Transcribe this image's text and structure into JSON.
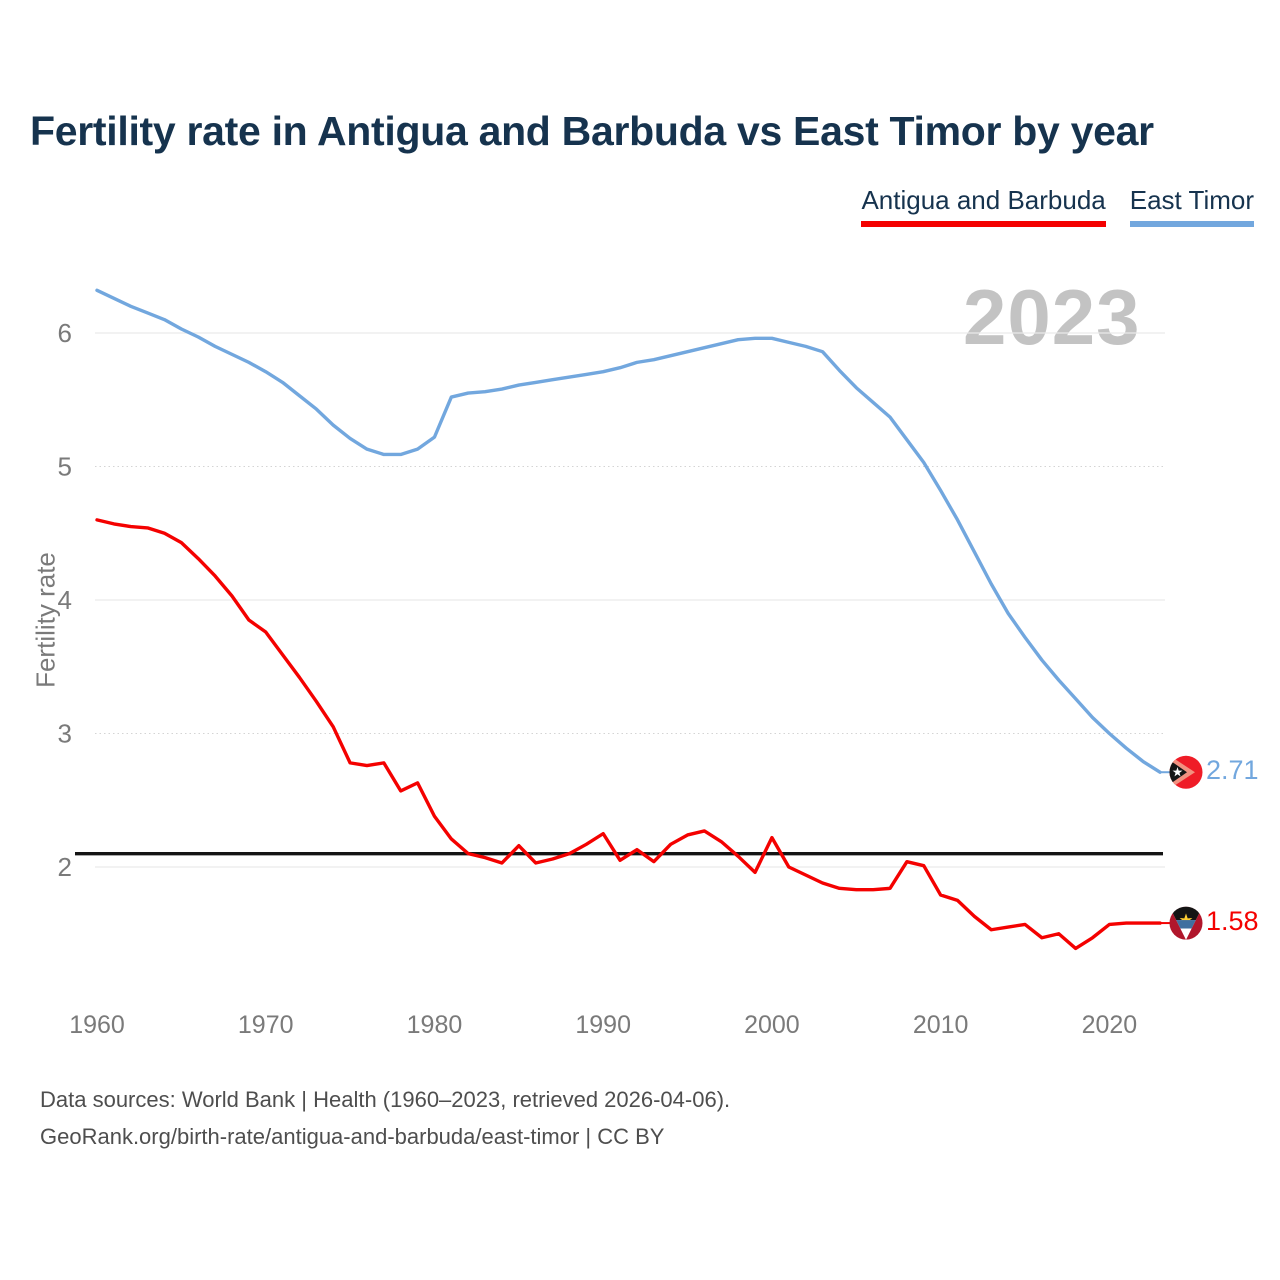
{
  "header": {
    "title": "Fertility rate in Antigua and Barbuda vs East Timor by year"
  },
  "legend": [
    {
      "label": "Antigua and Barbuda",
      "color": "#f40100"
    },
    {
      "label": "East Timor",
      "color": "#72a7de"
    }
  ],
  "watermark": "2023",
  "y_axis": {
    "label": "Fertility rate",
    "ticks": [
      6,
      5,
      4,
      3,
      2
    ]
  },
  "x_axis": {
    "ticks": [
      1960,
      1970,
      1980,
      1990,
      2000,
      2010,
      2020
    ]
  },
  "footer": {
    "line1": "Data sources: World Bank | Health (1960–2023, retrieved 2026-04-06).",
    "line2": "GeoRank.org/birth-rate/antigua-and-barbuda/east-timor | CC BY"
  },
  "chart_data": {
    "type": "line",
    "title": "Fertility rate in Antigua and Barbuda vs East Timor by year",
    "xlabel": "",
    "ylabel": "Fertility rate",
    "x_range": [
      1960,
      2023
    ],
    "ylim": [
      1.2,
      6.5
    ],
    "grid": "horizontal",
    "legend_position": "top-right",
    "reference_line": {
      "value": 2.1,
      "color": "#141414",
      "meaning": "replacement-level fertility"
    },
    "x": [
      1960,
      1961,
      1962,
      1963,
      1964,
      1965,
      1966,
      1967,
      1968,
      1969,
      1970,
      1971,
      1972,
      1973,
      1974,
      1975,
      1976,
      1977,
      1978,
      1979,
      1980,
      1981,
      1982,
      1983,
      1984,
      1985,
      1986,
      1987,
      1988,
      1989,
      1990,
      1991,
      1992,
      1993,
      1994,
      1995,
      1996,
      1997,
      1998,
      1999,
      2000,
      2001,
      2002,
      2003,
      2004,
      2005,
      2006,
      2007,
      2008,
      2009,
      2010,
      2011,
      2012,
      2013,
      2014,
      2015,
      2016,
      2017,
      2018,
      2019,
      2020,
      2021,
      2022,
      2023
    ],
    "series": [
      {
        "name": "Antigua and Barbuda",
        "color": "#f40100",
        "end_label": "1.58",
        "values": [
          4.6,
          4.57,
          4.55,
          4.54,
          4.5,
          4.43,
          4.31,
          4.18,
          4.03,
          3.85,
          3.76,
          3.59,
          3.42,
          3.24,
          3.05,
          2.78,
          2.76,
          2.78,
          2.57,
          2.63,
          2.38,
          2.21,
          2.1,
          2.07,
          2.03,
          2.16,
          2.03,
          2.06,
          2.1,
          2.17,
          2.25,
          2.05,
          2.13,
          2.04,
          2.17,
          2.24,
          2.27,
          2.19,
          2.08,
          1.96,
          2.22,
          2.0,
          1.94,
          1.88,
          1.84,
          1.83,
          1.83,
          1.84,
          2.04,
          2.01,
          1.79,
          1.75,
          1.63,
          1.53,
          1.55,
          1.57,
          1.47,
          1.5,
          1.39,
          1.47,
          1.57,
          1.58,
          1.58,
          1.58
        ]
      },
      {
        "name": "East Timor",
        "color": "#72a7de",
        "end_label": "2.71",
        "values": [
          6.32,
          6.26,
          6.2,
          6.15,
          6.1,
          6.03,
          5.97,
          5.9,
          5.84,
          5.78,
          5.71,
          5.63,
          5.53,
          5.43,
          5.31,
          5.21,
          5.13,
          5.09,
          5.09,
          5.13,
          5.22,
          5.52,
          5.55,
          5.56,
          5.58,
          5.61,
          5.63,
          5.65,
          5.67,
          5.69,
          5.71,
          5.74,
          5.78,
          5.8,
          5.83,
          5.86,
          5.89,
          5.92,
          5.95,
          5.96,
          5.96,
          5.93,
          5.9,
          5.86,
          5.72,
          5.59,
          5.48,
          5.37,
          5.2,
          5.03,
          4.82,
          4.6,
          4.36,
          4.12,
          3.9,
          3.72,
          3.55,
          3.4,
          3.26,
          3.12,
          3.0,
          2.89,
          2.79,
          2.71
        ]
      }
    ]
  }
}
